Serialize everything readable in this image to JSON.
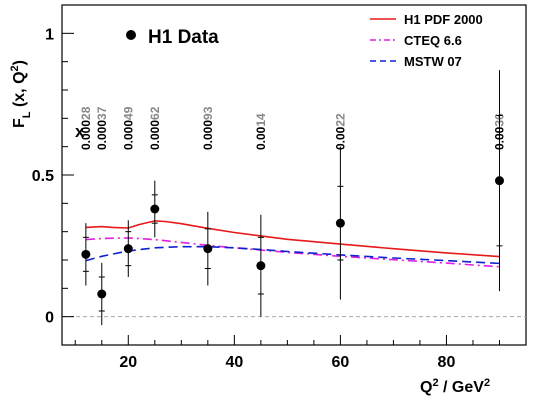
{
  "chart_data": {
    "type": "scatter",
    "title": "",
    "data_label": "H1 Data",
    "xlabel": "Q² / GeV²",
    "ylabel": "F_L (x, Q²)",
    "xlim": [
      7.5,
      95
    ],
    "ylim": [
      -0.1,
      1.1
    ],
    "x_ticks": [
      20,
      40,
      60,
      80
    ],
    "y_ticks": [
      0,
      0.5,
      1
    ],
    "x_tick_labels": [
      "20",
      "40",
      "60",
      "80"
    ],
    "y_tick_labels": [
      "0",
      "0.5",
      "1"
    ],
    "zero_line": true,
    "grid": false,
    "x_values_label": "x",
    "x_values_color": "#888888",
    "points": [
      {
        "q2": 12,
        "x_label": "0.00028",
        "fl": 0.22,
        "err_stat": 0.06,
        "err_tot": 0.11
      },
      {
        "q2": 15,
        "x_label": "0.00037",
        "fl": 0.08,
        "err_stat": 0.06,
        "err_tot": 0.11
      },
      {
        "q2": 20,
        "x_label": "0.00049",
        "fl": 0.24,
        "err_stat": 0.06,
        "err_tot": 0.1
      },
      {
        "q2": 25,
        "x_label": "0.00062",
        "fl": 0.38,
        "err_stat": 0.05,
        "err_tot": 0.1
      },
      {
        "q2": 35,
        "x_label": "0.00093",
        "fl": 0.24,
        "err_stat": 0.07,
        "err_tot": 0.13
      },
      {
        "q2": 45,
        "x_label": "0.0014",
        "fl": 0.18,
        "err_stat": 0.1,
        "err_tot": 0.18
      },
      {
        "q2": 60,
        "x_label": "0.0022",
        "fl": 0.33,
        "err_stat": 0.13,
        "err_tot": 0.27
      },
      {
        "q2": 90,
        "x_label": "0.0036",
        "fl": 0.48,
        "err_stat": 0.23,
        "err_tot": 0.39
      }
    ],
    "series": [
      {
        "name": "H1 PDF 2000",
        "color": "#e8191a",
        "dash": "solid",
        "x": [
          12,
          15,
          17,
          20,
          22,
          25,
          27,
          30,
          35,
          40,
          45,
          50,
          60,
          70,
          80,
          90
        ],
        "y": [
          0.315,
          0.318,
          0.315,
          0.313,
          0.325,
          0.338,
          0.336,
          0.328,
          0.312,
          0.297,
          0.285,
          0.273,
          0.256,
          0.24,
          0.225,
          0.212
        ]
      },
      {
        "name": "CTEQ 6.6",
        "color": "#e020e0",
        "dash": "dashdot",
        "x": [
          12,
          15,
          20,
          25,
          30,
          35,
          40,
          45,
          50,
          60,
          70,
          80,
          90
        ],
        "y": [
          0.272,
          0.276,
          0.278,
          0.272,
          0.262,
          0.252,
          0.243,
          0.235,
          0.227,
          0.213,
          0.201,
          0.189,
          0.176
        ]
      },
      {
        "name": "MSTW 07",
        "color": "#1020d0",
        "dash": "dashed",
        "x": [
          12,
          15,
          20,
          25,
          30,
          35,
          40,
          45,
          50,
          60,
          70,
          80,
          90
        ],
        "y": [
          0.198,
          0.213,
          0.232,
          0.243,
          0.247,
          0.247,
          0.243,
          0.237,
          0.23,
          0.218,
          0.207,
          0.198,
          0.188
        ]
      }
    ]
  }
}
